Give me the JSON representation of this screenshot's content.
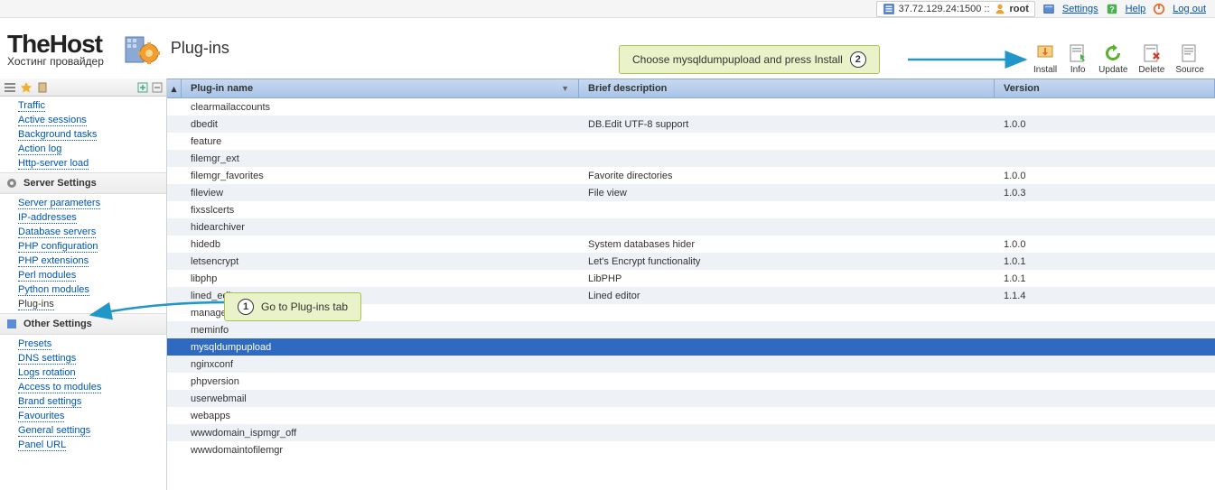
{
  "topbar": {
    "server": "37.72.129.24:1500 ::",
    "user": "root",
    "links": {
      "settings": "Settings",
      "help": "Help",
      "logout": "Log out"
    }
  },
  "logo": {
    "main": "TheHost",
    "sub": "Хостинг провайдер"
  },
  "page_title": "Plug-ins",
  "toolbar": [
    {
      "id": "install",
      "label": "Install"
    },
    {
      "id": "info",
      "label": "Info"
    },
    {
      "id": "update",
      "label": "Update"
    },
    {
      "id": "delete",
      "label": "Delete"
    },
    {
      "id": "source",
      "label": "Source"
    }
  ],
  "callouts": {
    "top": {
      "num": "2",
      "text": "Choose mysqldumpupload and press Install"
    },
    "side": {
      "num": "1",
      "text": "Go to Plug-ins tab"
    }
  },
  "sidebar": {
    "sections": [
      {
        "title": null,
        "items": [
          "Traffic",
          "Active sessions",
          "Background tasks",
          "Action log",
          "Http-server load"
        ]
      },
      {
        "title": "Server Settings",
        "icon": "gear",
        "items": [
          "Server parameters",
          "IP-addresses",
          "Database servers",
          "PHP configuration",
          "PHP extensions",
          "Perl modules",
          "Python modules",
          "Plug-ins"
        ]
      },
      {
        "title": "Other Settings",
        "icon": "wrench",
        "items": [
          "Presets",
          "DNS settings",
          "Logs rotation",
          "Access to modules",
          "Brand settings",
          "Favourites",
          "General settings",
          "Panel URL"
        ]
      }
    ],
    "selected": "Plug-ins"
  },
  "grid": {
    "columns": [
      "Plug-in name",
      "Brief description",
      "Version"
    ],
    "rows": [
      {
        "name": "clearmailaccounts",
        "desc": "",
        "ver": ""
      },
      {
        "name": "dbedit",
        "desc": "DB.Edit UTF-8 support",
        "ver": "1.0.0"
      },
      {
        "name": "feature",
        "desc": "",
        "ver": ""
      },
      {
        "name": "filemgr_ext",
        "desc": "",
        "ver": ""
      },
      {
        "name": "filemgr_favorites",
        "desc": "Favorite directories",
        "ver": "1.0.0"
      },
      {
        "name": "fileview",
        "desc": "File view",
        "ver": "1.0.3"
      },
      {
        "name": "fixsslcerts",
        "desc": "",
        "ver": ""
      },
      {
        "name": "hidearchiver",
        "desc": "",
        "ver": ""
      },
      {
        "name": "hidedb",
        "desc": "System databases hider",
        "ver": "1.0.0"
      },
      {
        "name": "letsencrypt",
        "desc": "Let's Encrypt functionality",
        "ver": "1.0.1"
      },
      {
        "name": "libphp",
        "desc": "LibPHP",
        "ver": "1.0.1"
      },
      {
        "name": "lined_editor",
        "desc": "Lined editor",
        "ver": "1.1.4"
      },
      {
        "name": "managemx",
        "desc": "",
        "ver": ""
      },
      {
        "name": "meminfo",
        "desc": "",
        "ver": ""
      },
      {
        "name": "mysqldumpupload",
        "desc": "",
        "ver": "",
        "selected": true
      },
      {
        "name": "nginxconf",
        "desc": "",
        "ver": ""
      },
      {
        "name": "phpversion",
        "desc": "",
        "ver": ""
      },
      {
        "name": "userwebmail",
        "desc": "",
        "ver": ""
      },
      {
        "name": "webapps",
        "desc": "",
        "ver": ""
      },
      {
        "name": "wwwdomain_ispmgr_off",
        "desc": "",
        "ver": ""
      },
      {
        "name": "wwwdomaintofilemgr",
        "desc": "",
        "ver": ""
      }
    ]
  },
  "colors": {
    "header_grad_a": "#c8d9f0",
    "header_grad_b": "#a8c4e8",
    "selected_row": "#2f6ac0",
    "link": "#0055aa",
    "callout_bg": "#e9f2c8",
    "callout_border": "#a9c24f"
  }
}
